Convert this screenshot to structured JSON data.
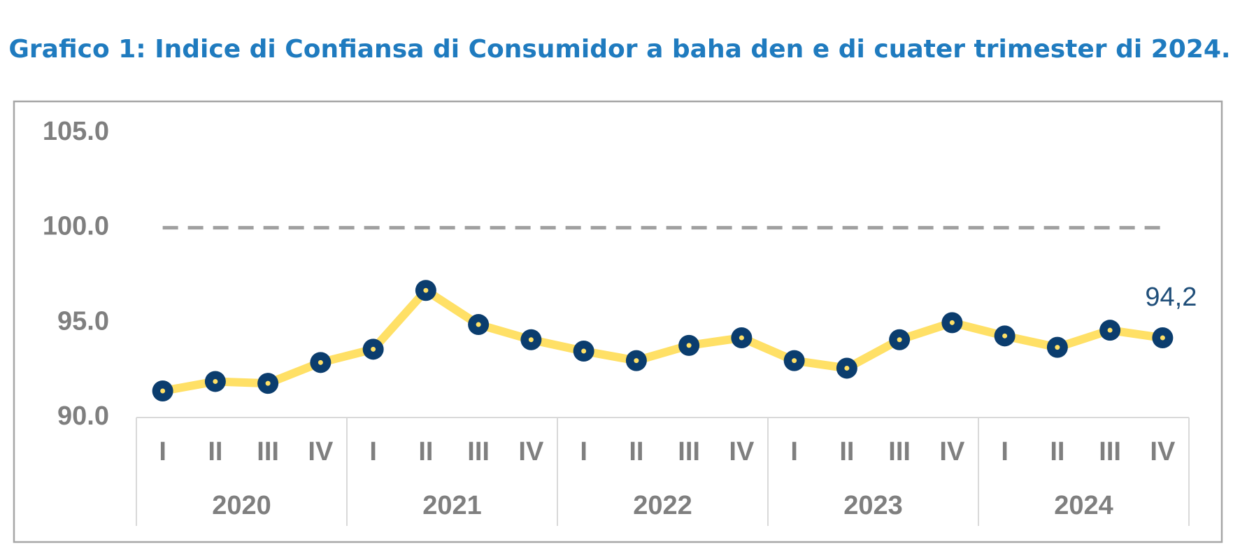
{
  "chart_data": {
    "type": "line",
    "title": "Grafico 1: Indice di Confiansa di Consumidor a baha den e di cuater trimester di 2024.",
    "categories": [
      "I",
      "II",
      "III",
      "IV",
      "I",
      "II",
      "III",
      "IV",
      "I",
      "II",
      "III",
      "IV",
      "I",
      "II",
      "III",
      "IV",
      "I",
      "II",
      "III",
      "IV"
    ],
    "category_groups": [
      "2020",
      "2021",
      "2022",
      "2023",
      "2024"
    ],
    "series": [
      {
        "name": "Indice di Confiansa di Consumidor",
        "color": "#ffe066",
        "marker_color": "#0b3d6e",
        "values": [
          91.4,
          91.9,
          91.8,
          92.9,
          93.6,
          96.7,
          94.9,
          94.1,
          93.5,
          93.0,
          93.8,
          94.2,
          93.0,
          92.6,
          94.1,
          95.0,
          94.3,
          93.7,
          94.6,
          94.2
        ],
        "value_labels": [
          null,
          null,
          null,
          null,
          null,
          null,
          null,
          null,
          null,
          null,
          null,
          null,
          null,
          null,
          null,
          null,
          null,
          null,
          null,
          "94,2"
        ]
      }
    ],
    "ylim": [
      90,
      105
    ],
    "yticks": [
      {
        "value": 90,
        "label": "90.0"
      },
      {
        "value": 95,
        "label": "95.0"
      },
      {
        "value": 100,
        "label": "100.0"
      },
      {
        "value": 105,
        "label": "105.0"
      }
    ],
    "reference_line": 100,
    "grid": false
  }
}
